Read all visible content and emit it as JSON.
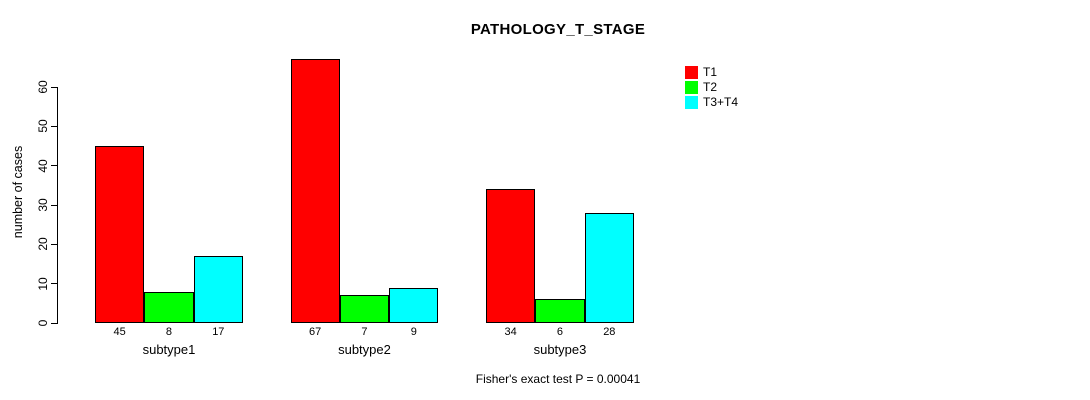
{
  "title": "PATHOLOGY_T_STAGE",
  "ylabel": "number of cases",
  "footer": "Fisher's exact test P = 0.00041",
  "chart_data": {
    "type": "bar",
    "title": "PATHOLOGY_T_STAGE",
    "categories": [
      "subtype1",
      "subtype2",
      "subtype3"
    ],
    "series": [
      {
        "name": "T1",
        "color": "#FF0000",
        "values": [
          45,
          67,
          34
        ]
      },
      {
        "name": "T2",
        "color": "#00FF00",
        "values": [
          8,
          7,
          6
        ]
      },
      {
        "name": "T3+T4",
        "color": "#00FFFF",
        "values": [
          17,
          9,
          28
        ]
      }
    ],
    "xlabel": "",
    "ylabel": "number of cases",
    "ylim": [
      0,
      60
    ],
    "yticks": [
      0,
      10,
      20,
      30,
      40,
      50,
      60
    ],
    "grid": false,
    "legend_position": "top-right",
    "bar_value_labels": true,
    "bar_border_color": "#000000",
    "annotation": "Fisher's exact test P = 0.00041"
  }
}
